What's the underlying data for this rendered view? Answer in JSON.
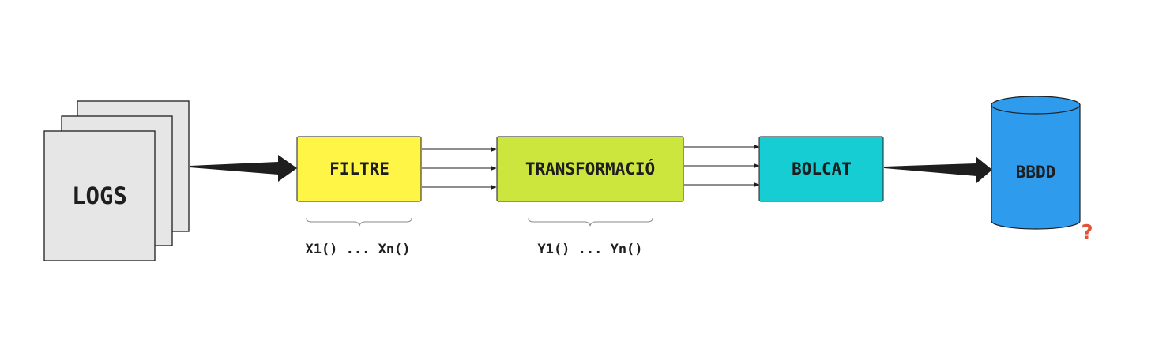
{
  "nodes": {
    "logs": {
      "label": "LOGS",
      "fill": "#e6e6e6"
    },
    "filtre": {
      "label": "FILTRE",
      "fill": "#fff546"
    },
    "transformacio": {
      "label": "TRANSFORMACIÓ",
      "fill": "#cde63e"
    },
    "bolcat": {
      "label": "BOLCAT",
      "fill": "#16cdd4"
    },
    "bbdd": {
      "label": "BBDD",
      "fill": "#2e9bed"
    }
  },
  "annotations": {
    "filtre_functions": "X1() ... Xn()",
    "transform_functions": "Y1() ... Yn()",
    "question_mark": "?"
  },
  "colors": {
    "stroke": "#1e1e1e",
    "arrow": "#1e1e1e",
    "question_mark": "#e0533a",
    "brace": "#8a8a8a"
  }
}
